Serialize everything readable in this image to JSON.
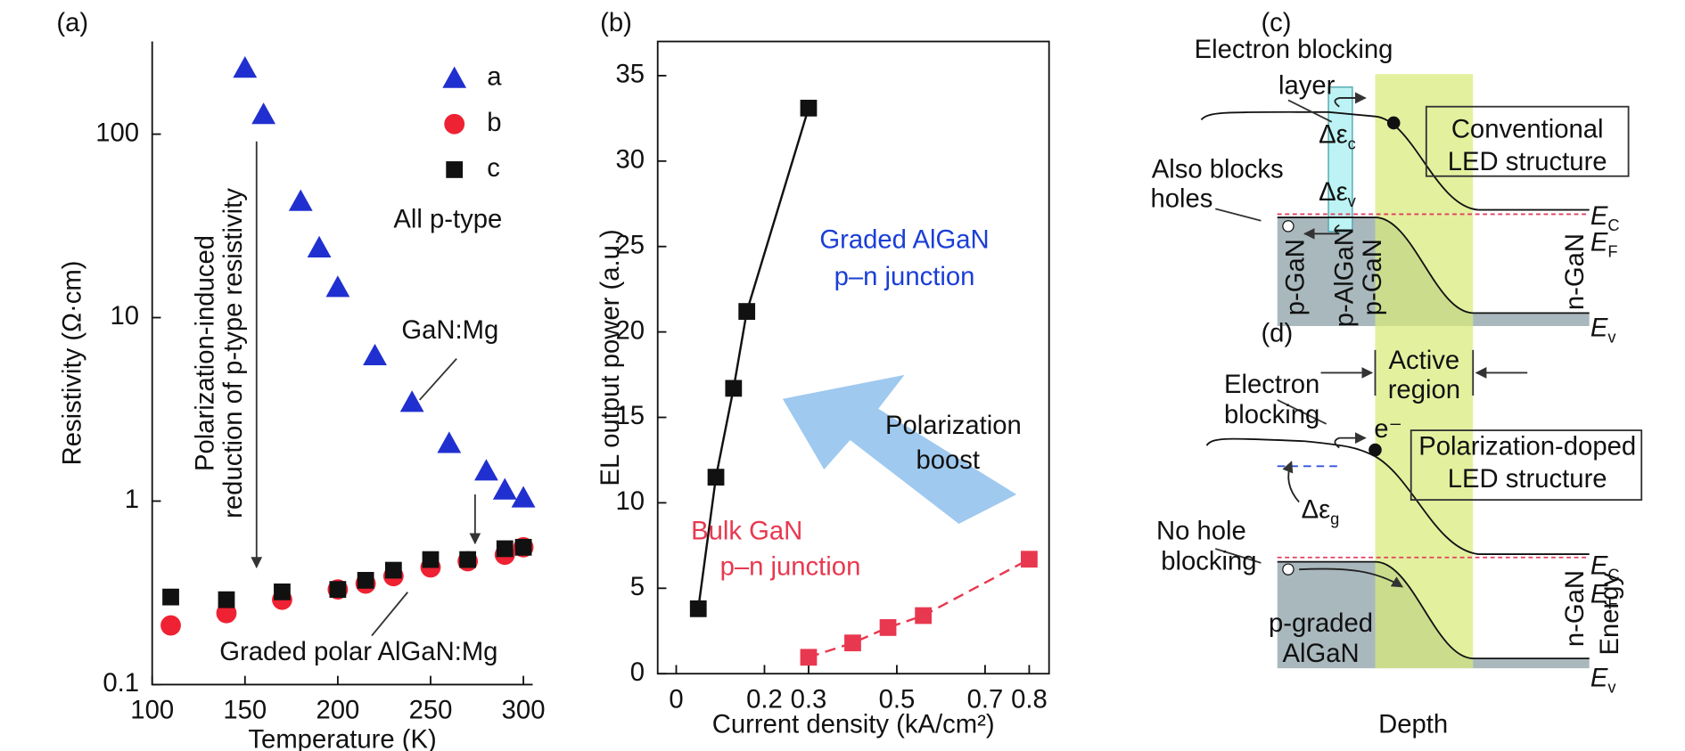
{
  "chart_data": [
    {
      "type": "scatter",
      "panel_label": "(a)",
      "x_label": "Temperature (K)",
      "y_label": "Resistivity (Ω·cm)",
      "xlim": [
        100,
        305
      ],
      "xticks": [
        100,
        150,
        200,
        250,
        300
      ],
      "ylim": [
        0.1,
        320
      ],
      "yticks": [
        0.1,
        1,
        10,
        100
      ],
      "y_scale": "log",
      "legend": "upper right",
      "series": [
        {
          "name": "a",
          "color": "#2030d0",
          "marker": "triangle",
          "x": [
            150,
            160,
            180,
            190,
            200,
            220,
            240,
            260,
            280,
            290,
            300
          ],
          "values": [
            229,
            128,
            43,
            24,
            14.6,
            6.2,
            3.45,
            2.06,
            1.46,
            1.15,
            1.04
          ]
        },
        {
          "name": "b",
          "color": "#ee2233",
          "marker": "circle",
          "x": [
            110,
            140,
            170,
            200,
            215,
            230,
            250,
            270,
            290,
            300
          ],
          "values": [
            0.21,
            0.245,
            0.29,
            0.33,
            0.355,
            0.39,
            0.435,
            0.47,
            0.51,
            0.56
          ]
        },
        {
          "name": "c",
          "color": "#111111",
          "marker": "square",
          "x": [
            110,
            140,
            170,
            200,
            215,
            230,
            250,
            270,
            290,
            300
          ],
          "values": [
            0.3,
            0.29,
            0.32,
            0.33,
            0.37,
            0.42,
            0.48,
            0.48,
            0.55,
            0.56
          ]
        }
      ],
      "annotations": [
        "All p-type",
        "GaN:Mg",
        "Graded polar AlGaN:Mg",
        "Polarization-induced",
        "reduction of p-type resistivity"
      ]
    },
    {
      "type": "line",
      "panel_label": "(b)",
      "x_label": "Current density (kA/cm²)",
      "y_label": "EL output power (a.u.)",
      "xlim": [
        -0.042,
        0.845
      ],
      "xticks": [
        0,
        0.2,
        0.3,
        0.5,
        0.7,
        0.8
      ],
      "ylim": [
        0,
        37
      ],
      "yticks": [
        0,
        5,
        10,
        15,
        20,
        25,
        30,
        35
      ],
      "series": [
        {
          "color": "#111111",
          "marker": "square",
          "line_style": "solid",
          "x": [
            0.05,
            0.09,
            0.13,
            0.16,
            0.3
          ],
          "values": [
            3.8,
            11.5,
            16.7,
            21.2,
            33.1
          ]
        },
        {
          "color": "#e8384f",
          "marker": "square",
          "line_style": "dashed",
          "x": [
            0.3,
            0.4,
            0.48,
            0.56,
            0.8
          ],
          "values": [
            0.96,
            1.8,
            2.7,
            3.4,
            6.7
          ]
        }
      ],
      "annotations": [
        {
          "text": "Graded AlGaN",
          "color": "#1a3ed6"
        },
        {
          "text": "p–n junction",
          "color": "#1a3ed6"
        },
        {
          "text": "Bulk GaN",
          "color": "#e8384f"
        },
        {
          "text": "p–n junction",
          "color": "#e8384f"
        },
        {
          "text": "Polarization",
          "color": "#111111"
        },
        {
          "text": "boost",
          "color": "#111111"
        }
      ]
    }
  ],
  "diagrams": {
    "c": {
      "texts": [
        "(c)",
        "Electron blocking",
        "layer",
        "Conventional",
        "LED structure",
        "Also blocks",
        "holes",
        {
          "text": "Δε",
          "sub": "c"
        },
        {
          "text": "Δε",
          "sub": "v"
        },
        {
          "text": "E",
          "sub": "C"
        },
        {
          "text": "E",
          "sub": "F"
        },
        "n-GaN",
        {
          "text": "E",
          "sub": "v"
        },
        "p-GaN",
        "p-AlGaN",
        "p-GaN"
      ]
    },
    "d": {
      "texts": [
        "(d)",
        "Active",
        "region",
        "Electron",
        "blocking",
        "e⁻",
        "Polarization-doped",
        "LED structure",
        {
          "text": "Δε",
          "sub": "g"
        },
        "No hole",
        "blocking",
        {
          "text": "E",
          "sub": "C"
        },
        {
          "text": "E",
          "sub": "F"
        },
        "p-graded",
        "AlGaN",
        "n-GaN",
        "Energy",
        {
          "text": "E",
          "sub": "v"
        },
        "Depth"
      ]
    }
  }
}
